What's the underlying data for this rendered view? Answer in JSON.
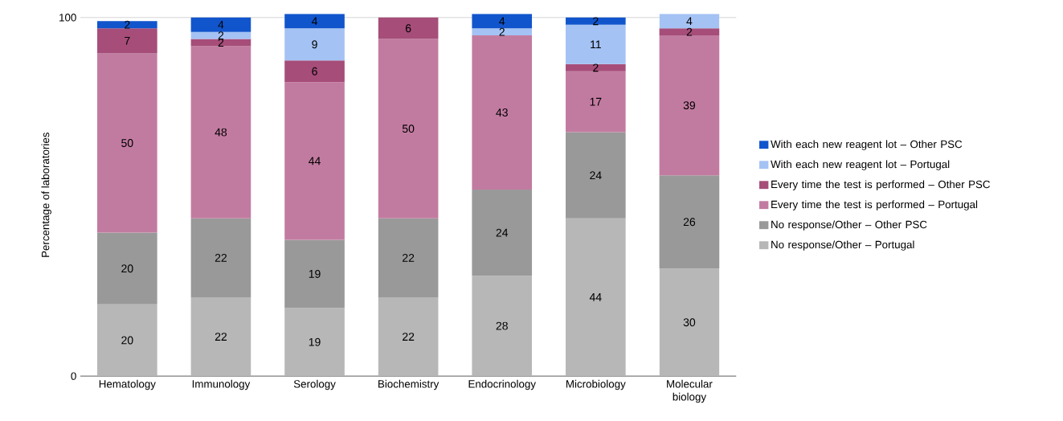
{
  "chart_data": {
    "type": "bar",
    "stacked": true,
    "ylabel": "Percentage of laboratories",
    "categories": [
      "Hematology",
      "Immunology",
      "Serology",
      "Biochemistry",
      "Endocrinology",
      "Microbiology",
      "Molecular biology"
    ],
    "ylim": [
      0,
      101
    ],
    "yticks": [
      0,
      100
    ],
    "grid": "y",
    "legend": "right",
    "data_labels": true,
    "series": [
      {
        "name": "No response/Other – Portugal",
        "color": "#b7b7b7",
        "values": [
          20,
          22,
          19,
          22,
          28,
          44,
          30
        ]
      },
      {
        "name": "No response/Other – Other PSC",
        "color": "#999999",
        "values": [
          20,
          22,
          19,
          22,
          24,
          24,
          26
        ]
      },
      {
        "name": "Every time the test is performed – Portugal",
        "color": "#c27ba0",
        "values": [
          50,
          48,
          44,
          50,
          43,
          17,
          39
        ]
      },
      {
        "name": "Every time the test is performed – Other PSC",
        "color": "#a64d79",
        "values": [
          7,
          2,
          6,
          6,
          null,
          2,
          2
        ]
      },
      {
        "name": "With each new reagent lot – Portugal",
        "color": "#a4c2f4",
        "values": [
          null,
          2,
          9,
          null,
          2,
          11,
          4
        ]
      },
      {
        "name": "With each new reagent lot – Other PSC",
        "color": "#1155cc",
        "values": [
          2,
          4,
          4,
          null,
          4,
          2,
          null
        ]
      }
    ]
  }
}
